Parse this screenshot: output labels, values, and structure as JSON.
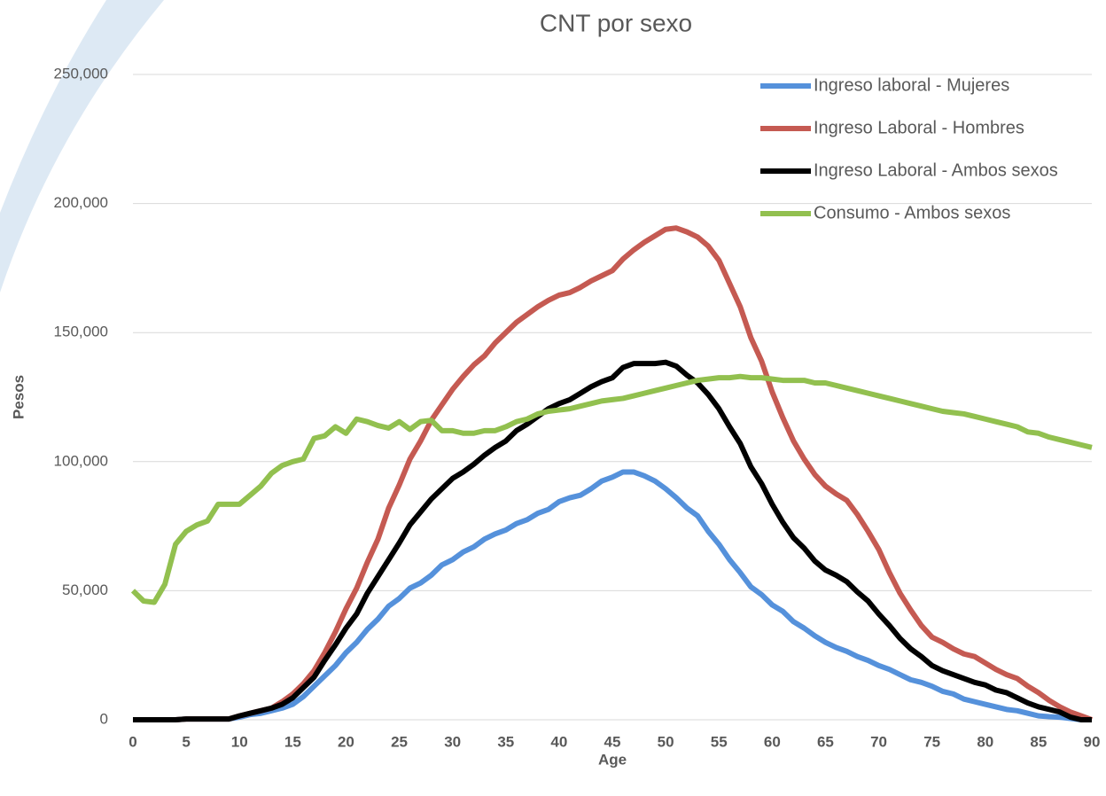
{
  "chart_data": {
    "type": "line",
    "title": "CNT por sexo",
    "x_label": "Age",
    "y_label": "Pesos",
    "x": [
      0,
      1,
      2,
      3,
      4,
      5,
      6,
      7,
      8,
      9,
      10,
      11,
      12,
      13,
      14,
      15,
      16,
      17,
      18,
      19,
      20,
      21,
      22,
      23,
      24,
      25,
      26,
      27,
      28,
      29,
      30,
      31,
      32,
      33,
      34,
      35,
      36,
      37,
      38,
      39,
      40,
      41,
      42,
      43,
      44,
      45,
      46,
      47,
      48,
      49,
      50,
      51,
      52,
      53,
      54,
      55,
      56,
      57,
      58,
      59,
      60,
      61,
      62,
      63,
      64,
      65,
      66,
      67,
      68,
      69,
      70,
      71,
      72,
      73,
      74,
      75,
      76,
      77,
      78,
      79,
      80,
      81,
      82,
      83,
      84,
      85,
      86,
      87,
      88,
      89,
      90
    ],
    "series": [
      {
        "name": "Ingreso laboral - Mujeres",
        "color": "#5591db",
        "values": [
          0,
          0,
          0,
          0,
          0,
          300,
          300,
          300,
          300,
          300,
          1000,
          2000,
          2500,
          3500,
          4500,
          6000,
          9000,
          13000,
          17000,
          21000,
          26000,
          30000,
          35000,
          39000,
          44000,
          47000,
          51000,
          53000,
          56000,
          60000,
          62000,
          65000,
          67000,
          70000,
          72000,
          73500,
          76000,
          77500,
          80000,
          81500,
          84500,
          86000,
          87000,
          89500,
          92500,
          94000,
          96000,
          96000,
          94500,
          92500,
          89500,
          86000,
          82000,
          79000,
          73000,
          68000,
          62000,
          57000,
          51500,
          48500,
          44500,
          42000,
          38000,
          35500,
          32500,
          30000,
          28000,
          26500,
          24500,
          23000,
          21000,
          19500,
          17500,
          15500,
          14500,
          13000,
          11000,
          10000,
          8000,
          7000,
          6000,
          5000,
          4000,
          3500,
          2500,
          1500,
          1200,
          1000,
          500,
          0,
          0
        ]
      },
      {
        "name": "Ingreso Laboral - Hombres",
        "color": "#c55a52",
        "values": [
          0,
          0,
          0,
          0,
          0,
          300,
          300,
          300,
          300,
          300,
          1500,
          2500,
          3500,
          4500,
          7000,
          10000,
          14000,
          19000,
          26000,
          34000,
          43000,
          51000,
          61000,
          70000,
          82000,
          91000,
          101000,
          108000,
          116000,
          122000,
          128000,
          133000,
          137500,
          141000,
          146000,
          150000,
          154000,
          157000,
          160000,
          162500,
          164500,
          165500,
          167500,
          170000,
          172000,
          174000,
          178500,
          182000,
          185000,
          187500,
          190000,
          190500,
          189000,
          187000,
          183500,
          178000,
          169000,
          160000,
          148000,
          139000,
          127000,
          117000,
          108000,
          101000,
          95000,
          90500,
          87500,
          85000,
          79500,
          73000,
          66000,
          57000,
          49000,
          42500,
          36500,
          32000,
          30000,
          27500,
          25500,
          24500,
          22000,
          19500,
          17500,
          16000,
          13000,
          10500,
          7500,
          5000,
          3000,
          1500,
          0
        ]
      },
      {
        "name": "Ingreso Laboral - Ambos sexos",
        "color": "#000000",
        "values": [
          0,
          0,
          0,
          0,
          0,
          300,
          300,
          300,
          300,
          300,
          1500,
          2500,
          3500,
          4500,
          6000,
          8500,
          12500,
          16500,
          23000,
          29000,
          35500,
          41000,
          49000,
          55500,
          62000,
          68500,
          75500,
          80500,
          85500,
          89500,
          93500,
          96000,
          99000,
          102500,
          105500,
          108000,
          112000,
          114500,
          117500,
          120500,
          122500,
          124000,
          126500,
          129000,
          131000,
          132500,
          136500,
          138000,
          138000,
          138000,
          138500,
          137000,
          133500,
          130500,
          126000,
          120500,
          113500,
          107000,
          98000,
          91500,
          83500,
          76500,
          70500,
          66500,
          61500,
          58000,
          56000,
          53500,
          49500,
          46000,
          41000,
          36500,
          31500,
          27500,
          24500,
          21000,
          19000,
          17500,
          16000,
          14500,
          13500,
          11500,
          10500,
          8500,
          6500,
          5000,
          4000,
          3000,
          1000,
          0,
          0
        ]
      },
      {
        "name": "Consumo - Ambos sexos",
        "color": "#92c04f",
        "values": [
          50000,
          46000,
          45500,
          52500,
          68000,
          73000,
          75500,
          77000,
          83500,
          83500,
          83500,
          87000,
          90500,
          95500,
          98500,
          100000,
          101000,
          109000,
          110000,
          113500,
          111000,
          116500,
          115500,
          114000,
          113000,
          115500,
          112500,
          115500,
          116000,
          112000,
          112000,
          111000,
          111000,
          112000,
          112000,
          113500,
          115500,
          116500,
          118500,
          119500,
          120000,
          120500,
          121500,
          122500,
          123500,
          124000,
          124500,
          125500,
          126500,
          127500,
          128500,
          129500,
          130500,
          131500,
          132000,
          132500,
          132500,
          133000,
          132500,
          132500,
          132000,
          131500,
          131500,
          131500,
          130500,
          130500,
          129500,
          128500,
          127500,
          126500,
          125500,
          124500,
          123500,
          122500,
          121500,
          120500,
          119500,
          119000,
          118500,
          117500,
          116500,
          115500,
          114500,
          113500,
          111500,
          111000,
          109500,
          108500,
          107500,
          106500,
          105500
        ]
      }
    ],
    "xlim": [
      0,
      90
    ],
    "xticks": [
      0,
      5,
      10,
      15,
      20,
      25,
      30,
      35,
      40,
      45,
      50,
      55,
      60,
      65,
      70,
      75,
      80,
      85,
      90
    ],
    "ylim": [
      0,
      250000
    ],
    "yticks": [
      0,
      {
        "value": 50000,
        "label": "50,000"
      },
      {
        "value": 100000,
        "label": "100,000"
      },
      {
        "value": 150000,
        "label": "150,000"
      },
      {
        "value": 200000,
        "label": "200,000"
      },
      {
        "value": 250000,
        "label": "250,000"
      }
    ],
    "grid": true,
    "legend": "top-right"
  }
}
